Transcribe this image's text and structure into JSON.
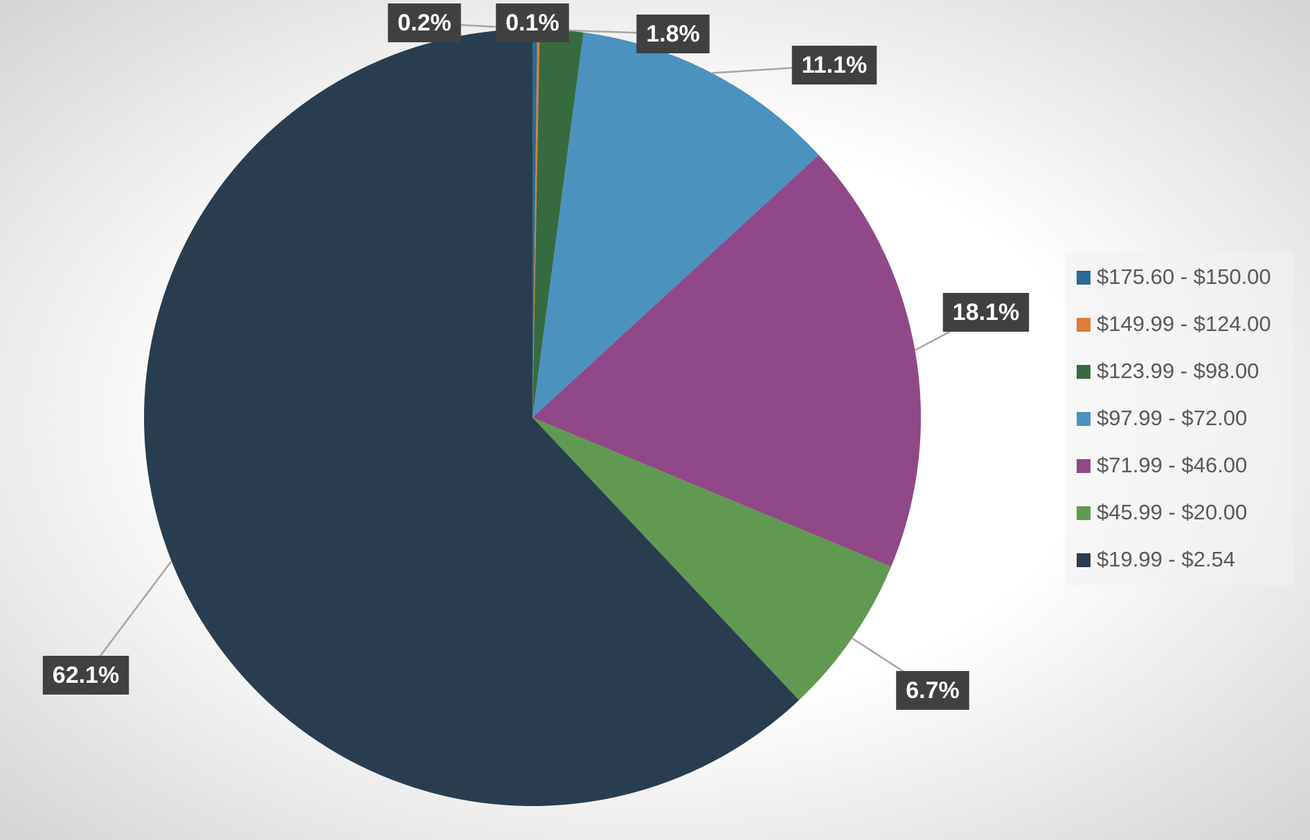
{
  "chart_data": {
    "type": "pie",
    "categories": [
      "$175.60 - $150.00",
      "$149.99 - $124.00",
      "$123.99 - $98.00",
      "$97.99 - $72.00",
      "$71.99 - $46.00",
      "$45.99 - $20.00",
      "$19.99 - $2.54"
    ],
    "values": [
      0.2,
      0.1,
      1.8,
      11.1,
      18.1,
      6.7,
      62.1
    ],
    "value_labels": [
      "0.2%",
      "0.1%",
      "1.8%",
      "11.1%",
      "18.1%",
      "6.7%",
      "62.1%"
    ],
    "colors": [
      "#2b6a94",
      "#e07b39",
      "#366b3f",
      "#4b92bf",
      "#914889",
      "#5f9a50",
      "#2a3d4f"
    ],
    "legend": "right"
  }
}
